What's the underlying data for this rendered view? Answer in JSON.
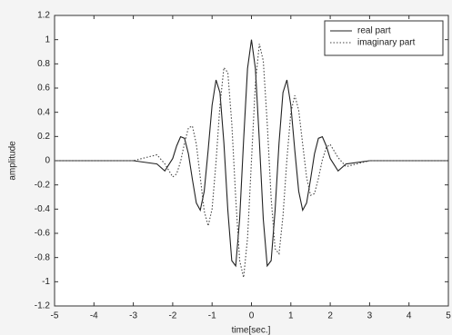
{
  "chart_data": {
    "type": "line",
    "xlabel": "time[sec.]",
    "ylabel": "amplitude",
    "x": [
      -5,
      -4,
      -3,
      -2.4,
      -2.2,
      -2,
      -1.9,
      -1.8,
      -1.7,
      -1.6,
      -1.5,
      -1.4,
      -1.3,
      -1.2,
      -1.1,
      -1,
      -0.9,
      -0.8,
      -0.7,
      -0.6,
      -0.5,
      -0.4,
      -0.3,
      -0.2,
      -0.1,
      0,
      0.1,
      0.2,
      0.3,
      0.4,
      0.5,
      0.6,
      0.7,
      0.8,
      0.9,
      1,
      1.1,
      1.2,
      1.3,
      1.4,
      1.5,
      1.6,
      1.7,
      1.8,
      1.9,
      2,
      2.2,
      2.4,
      3,
      4,
      5
    ],
    "series": [
      {
        "name": "real part",
        "color": "#222222",
        "dash": "solid",
        "values": [
          0,
          0,
          0,
          -0.027,
          -0.085,
          0.018,
          0.122,
          0.198,
          0.185,
          0.056,
          -0.155,
          -0.349,
          -0.409,
          -0.253,
          0.087,
          0.458,
          0.667,
          0.563,
          0.146,
          -0.409,
          -0.826,
          -0.869,
          -0.483,
          0.167,
          0.761,
          1,
          0.761,
          0.167,
          -0.483,
          -0.869,
          -0.826,
          -0.409,
          0.146,
          0.563,
          0.667,
          0.458,
          0.087,
          -0.253,
          -0.409,
          -0.349,
          -0.155,
          0.056,
          0.185,
          0.198,
          0.122,
          0.018,
          -0.085,
          -0.027,
          0,
          0,
          0
        ]
      },
      {
        "name": "imaginary part",
        "color": "#444444",
        "dash": "dotted",
        "values": [
          0,
          0,
          0,
          0.049,
          -0.026,
          -0.134,
          -0.109,
          -0.007,
          0.146,
          0.272,
          0.286,
          0.137,
          -0.137,
          -0.416,
          -0.539,
          -0.399,
          -0.011,
          0.458,
          0.769,
          0.728,
          0.31,
          -0.309,
          -0.825,
          -0.965,
          -0.641,
          0,
          0.641,
          0.965,
          0.825,
          0.309,
          -0.31,
          -0.728,
          -0.769,
          -0.458,
          0.011,
          0.399,
          0.539,
          0.416,
          0.137,
          -0.137,
          -0.286,
          -0.272,
          -0.146,
          0.007,
          0.109,
          0.134,
          0.026,
          -0.049,
          0,
          0,
          0
        ]
      }
    ],
    "xlim": [
      -5,
      5
    ],
    "xticks": [
      -5,
      -4,
      -3,
      -2,
      -1,
      0,
      1,
      2,
      3,
      4,
      5
    ],
    "ylim": [
      -1.2,
      1.2
    ],
    "yticks": [
      -1.2,
      -1,
      -0.8,
      -0.6,
      -0.4,
      -0.2,
      0,
      0.2,
      0.4,
      0.6,
      0.8,
      1,
      1.2
    ],
    "grid": false,
    "legend": "upper right"
  }
}
